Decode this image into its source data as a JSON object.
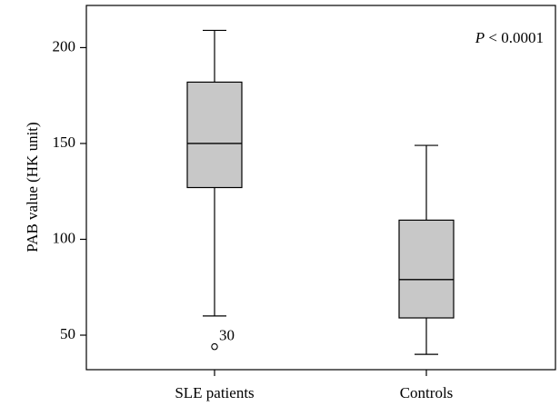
{
  "chart_data": {
    "type": "boxplot",
    "title": "",
    "xlabel": "",
    "ylabel": "PAB value (HK unit)",
    "ylim": [
      32,
      222
    ],
    "yticks": [
      50,
      100,
      150,
      200
    ],
    "annotation": {
      "italic": "P",
      "rest": " < 0.0001"
    },
    "grid": false,
    "box_color": "#c8c8c8",
    "categories": [
      "SLE patients",
      "Controls"
    ],
    "boxes": [
      {
        "label": "SLE patients",
        "min": 60,
        "q1": 127,
        "median": 150,
        "q3": 182,
        "max": 209,
        "outliers": [
          {
            "value": 44,
            "label": "30"
          }
        ]
      },
      {
        "label": "Controls",
        "min": 40,
        "q1": 59,
        "median": 79,
        "q3": 110,
        "max": 149,
        "outliers": []
      }
    ]
  }
}
